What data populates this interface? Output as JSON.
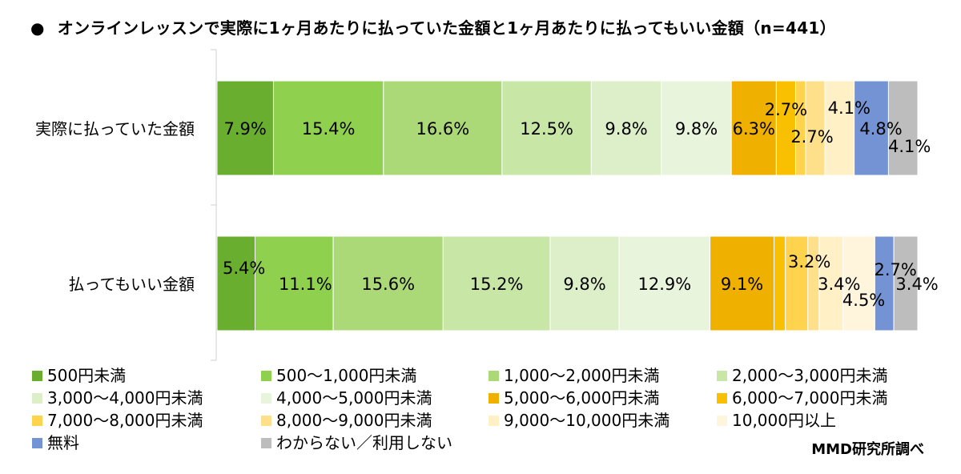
{
  "chart_data": {
    "type": "bar",
    "orientation": "horizontal",
    "stacked": true,
    "percent": true,
    "title": "オンラインレッスンで実際に1ヶ月あたりに払っていた金額と1ヶ月あたりに払ってもいい金額（n=441）",
    "categories": [
      "実際に払っていた金額",
      "払ってもいい金額"
    ],
    "series": [
      {
        "name": "500円未満",
        "color": "#6aae2f",
        "values": [
          7.9,
          5.4
        ]
      },
      {
        "name": "500〜1,000円未満",
        "color": "#8fd04f",
        "values": [
          15.4,
          11.1
        ]
      },
      {
        "name": "1,000〜2,000円未満",
        "color": "#acd978",
        "values": [
          16.6,
          15.6
        ]
      },
      {
        "name": "2,000〜3,000円未満",
        "color": "#c8e6a6",
        "values": [
          12.5,
          15.2
        ]
      },
      {
        "name": "3,000〜4,000円未満",
        "color": "#dcefc8",
        "values": [
          9.8,
          9.8
        ]
      },
      {
        "name": "4,000〜5,000円未満",
        "color": "#e8f4dc",
        "values": [
          9.8,
          12.9
        ]
      },
      {
        "name": "5,000〜6,000円未満",
        "color": "#f0b000",
        "values": [
          6.3,
          9.1
        ]
      },
      {
        "name": "6,000〜7,000円未満",
        "color": "#f8c000",
        "values": [
          2.7,
          1.6
        ]
      },
      {
        "name": "7,000〜8,000円未満",
        "color": "#ffd34e",
        "values": [
          1.4,
          3.2
        ]
      },
      {
        "name": "8,000〜9,000円未満",
        "color": "#ffe08a",
        "values": [
          2.7,
          1.6
        ]
      },
      {
        "name": "9,000〜10,000円未満",
        "color": "#fff0c6",
        "values": [
          4.1,
          3.4
        ]
      },
      {
        "name": "10,000円以上",
        "color": "#fff5dd",
        "values": [
          0.0,
          4.5
        ]
      },
      {
        "name": "無料",
        "color": "#7393d4",
        "values": [
          4.8,
          2.7
        ]
      },
      {
        "name": "わからない／利用しない",
        "color": "#bdbdbd",
        "values": [
          4.1,
          3.4
        ]
      }
    ],
    "labels": [
      [
        "7.9%",
        "15.4%",
        "16.6%",
        "12.5%",
        "9.8%",
        "9.8%",
        "6.3%",
        "2.7%",
        "",
        "2.7%",
        "4.1%",
        "",
        "4.8%",
        "4.1%"
      ],
      [
        "5.4%",
        "11.1%",
        "15.6%",
        "15.2%",
        "9.8%",
        "12.9%",
        "9.1%",
        "",
        "3.2%",
        "",
        "3.4%",
        "4.5%",
        "2.7%",
        "3.4%"
      ]
    ],
    "legend_position": "bottom",
    "grid": false,
    "source": "MMD研究所調べ"
  }
}
